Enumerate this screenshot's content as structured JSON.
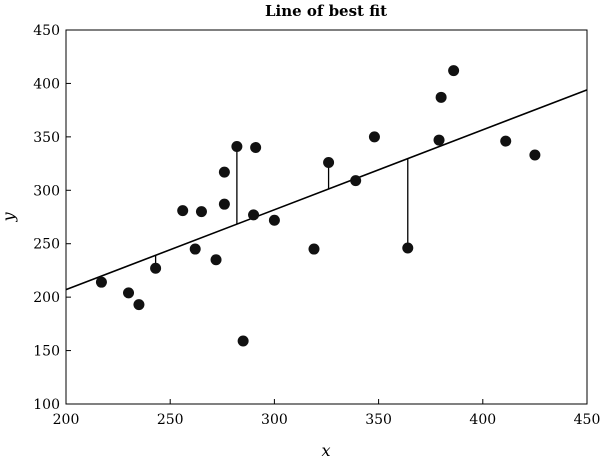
{
  "chart_data": {
    "type": "scatter",
    "title": "Line of best fit",
    "xlabel": "x",
    "ylabel": "y",
    "xlim": [
      200,
      450
    ],
    "ylim": [
      100,
      450
    ],
    "xticks": [
      200,
      250,
      300,
      350,
      400,
      450
    ],
    "yticks": [
      100,
      150,
      200,
      250,
      300,
      350,
      400,
      450
    ],
    "grid": false,
    "points": [
      {
        "x": 217,
        "y": 214
      },
      {
        "x": 230,
        "y": 204
      },
      {
        "x": 235,
        "y": 193
      },
      {
        "x": 243,
        "y": 227
      },
      {
        "x": 256,
        "y": 281
      },
      {
        "x": 262,
        "y": 245
      },
      {
        "x": 265,
        "y": 280
      },
      {
        "x": 272,
        "y": 235
      },
      {
        "x": 276,
        "y": 287
      },
      {
        "x": 276,
        "y": 317
      },
      {
        "x": 282,
        "y": 341
      },
      {
        "x": 285,
        "y": 159
      },
      {
        "x": 290,
        "y": 277
      },
      {
        "x": 291,
        "y": 340
      },
      {
        "x": 300,
        "y": 272
      },
      {
        "x": 319,
        "y": 245
      },
      {
        "x": 326,
        "y": 326
      },
      {
        "x": 339,
        "y": 309
      },
      {
        "x": 348,
        "y": 350
      },
      {
        "x": 364,
        "y": 246
      },
      {
        "x": 379,
        "y": 347
      },
      {
        "x": 380,
        "y": 387
      },
      {
        "x": 386,
        "y": 412
      },
      {
        "x": 411,
        "y": 346
      },
      {
        "x": 425,
        "y": 333
      }
    ],
    "fit_line": {
      "x": [
        200,
        450
      ],
      "y": [
        207,
        394
      ]
    },
    "residuals": [
      {
        "x": 243,
        "y_point": 227,
        "y_line": 239
      },
      {
        "x": 282,
        "y_point": 341,
        "y_line": 268
      },
      {
        "x": 326,
        "y_point": 326,
        "y_line": 301
      },
      {
        "x": 364,
        "y_point": 246,
        "y_line": 330
      }
    ]
  }
}
